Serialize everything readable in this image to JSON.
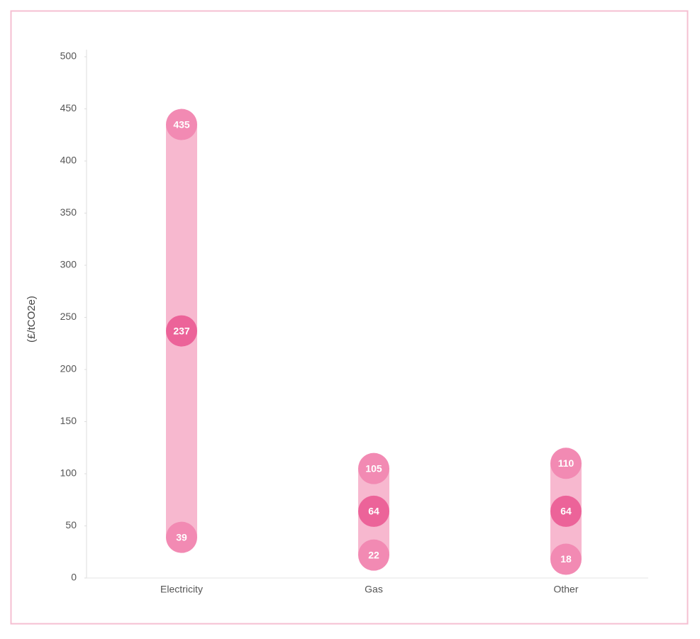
{
  "chart_data": {
    "type": "range",
    "y_label": "(£/tCO2e)",
    "categories": [
      "Electricity",
      "Gas",
      "Other"
    ],
    "range_color": "#f7b8cf",
    "series": [
      {
        "color": "#f28ab3",
        "values": [
          39,
          22,
          18
        ]
      },
      {
        "color": "#ec6399",
        "values": [
          237,
          64,
          64
        ]
      },
      {
        "color": "#f28ab3",
        "values": [
          435,
          105,
          110
        ]
      }
    ],
    "ylim": [
      0,
      500
    ],
    "yticks": [
      0,
      50,
      100,
      150,
      200,
      250,
      300,
      350,
      400,
      450,
      500
    ],
    "grid": false
  }
}
